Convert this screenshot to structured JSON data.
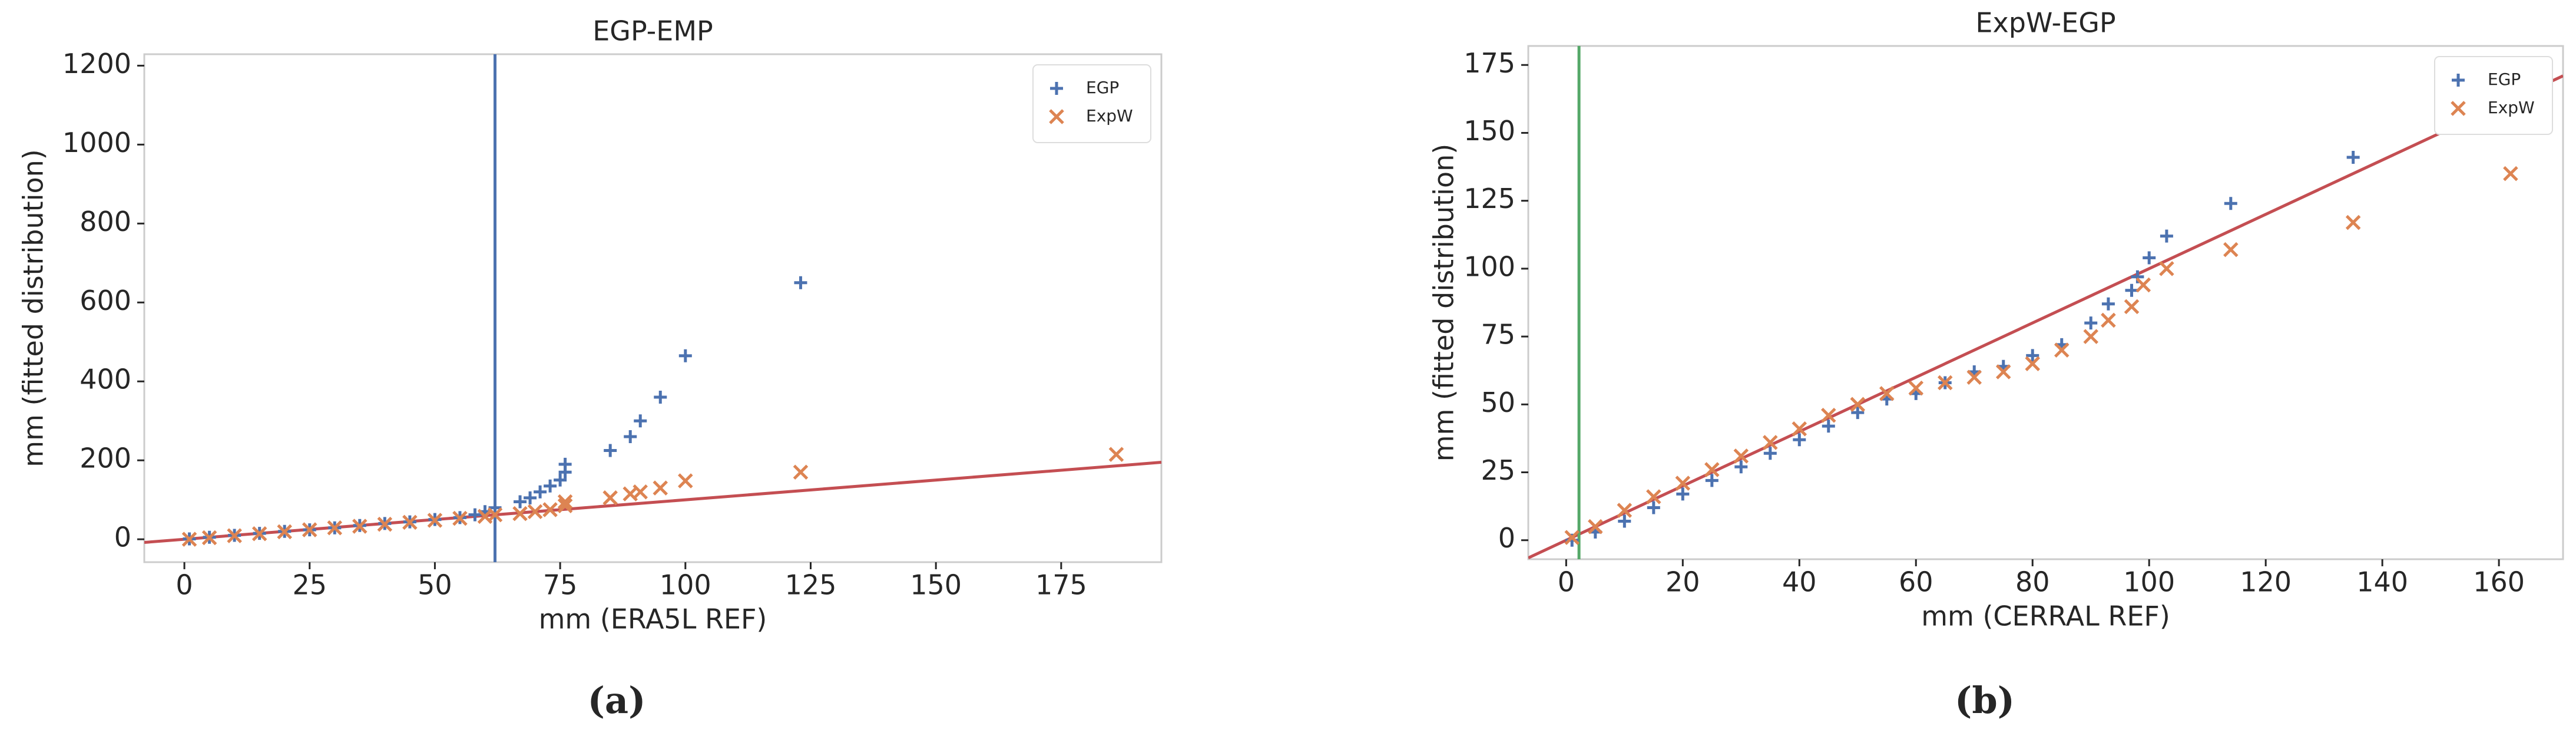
{
  "chart_data": [
    {
      "type": "scatter",
      "title": "EGP-EMP",
      "xlabel": "mm (ERA5L REF)",
      "ylabel": "mm (fitted distribution)",
      "caption": "(a)",
      "xlim": [
        -8,
        195
      ],
      "ylim": [
        -58,
        1229
      ],
      "xticks": [
        0,
        25,
        50,
        75,
        100,
        125,
        150,
        175
      ],
      "yticks": [
        0,
        200,
        400,
        600,
        800,
        1000,
        1200
      ],
      "identity_line": true,
      "identity_color": "#c44e52",
      "vline": {
        "x": 62,
        "color": "#4c72b0"
      },
      "legend": "upper right",
      "series": [
        {
          "name": "EGP",
          "color": "#4c72b0",
          "marker": "+",
          "x": [
            1,
            5,
            10,
            15,
            20,
            25,
            30,
            35,
            40,
            45,
            50,
            55,
            58,
            60,
            62,
            67,
            69,
            71,
            73,
            75,
            76,
            76,
            85,
            89,
            91,
            95,
            100,
            123
          ],
          "values": [
            1,
            5,
            10,
            15,
            20,
            24,
            29,
            35,
            40,
            44,
            50,
            55,
            62,
            70,
            80,
            95,
            105,
            120,
            135,
            150,
            170,
            190,
            225,
            260,
            300,
            360,
            465,
            650
          ]
        },
        {
          "name": "ExpW",
          "color": "#dd8452",
          "marker": "x",
          "x": [
            1,
            5,
            10,
            15,
            20,
            25,
            30,
            35,
            40,
            45,
            50,
            55,
            60,
            62,
            67,
            70,
            73,
            76,
            76,
            85,
            89,
            91,
            95,
            100,
            123,
            186
          ],
          "values": [
            0,
            4,
            9,
            14,
            19,
            24,
            29,
            33,
            38,
            43,
            48,
            53,
            58,
            62,
            65,
            70,
            75,
            85,
            95,
            105,
            115,
            120,
            130,
            148,
            170,
            215
          ]
        }
      ]
    },
    {
      "type": "scatter",
      "title": "ExpW-EGP",
      "xlabel": "mm (CERRAL REF)",
      "ylabel": "mm (fitted distribution)",
      "caption": "(b)",
      "xlim": [
        -6.5,
        171
      ],
      "ylim": [
        -7,
        182
      ],
      "xticks": [
        0,
        20,
        40,
        60,
        80,
        100,
        120,
        140,
        160
      ],
      "yticks": [
        0,
        25,
        50,
        75,
        100,
        125,
        150,
        175
      ],
      "identity_line": true,
      "identity_color": "#c44e52",
      "vline": {
        "x": 2.2,
        "color": "#55a868"
      },
      "legend": "upper right",
      "series": [
        {
          "name": "EGP",
          "color": "#4c72b0",
          "marker": "+",
          "x": [
            1,
            5,
            10,
            15,
            20,
            25,
            30,
            35,
            40,
            45,
            50,
            55,
            60,
            65,
            70,
            75,
            80,
            85,
            90,
            93,
            97,
            98,
            100,
            103,
            114,
            135
          ],
          "values": [
            0,
            3,
            7,
            12,
            17,
            22,
            27,
            32,
            37,
            42,
            47,
            52,
            54,
            58,
            62,
            64,
            68,
            72,
            80,
            87,
            92,
            97,
            104,
            112,
            124,
            141
          ]
        },
        {
          "name": "ExpW",
          "color": "#dd8452",
          "marker": "x",
          "x": [
            1,
            5,
            10,
            15,
            20,
            25,
            30,
            35,
            40,
            45,
            50,
            55,
            60,
            65,
            70,
            75,
            80,
            85,
            90,
            93,
            97,
            99,
            103,
            114,
            135,
            162
          ],
          "values": [
            1,
            5,
            11,
            16,
            21,
            26,
            31,
            36,
            41,
            46,
            50,
            54,
            56,
            58,
            60,
            62,
            65,
            70,
            75,
            81,
            86,
            94,
            100,
            107,
            117,
            135
          ]
        }
      ]
    }
  ]
}
